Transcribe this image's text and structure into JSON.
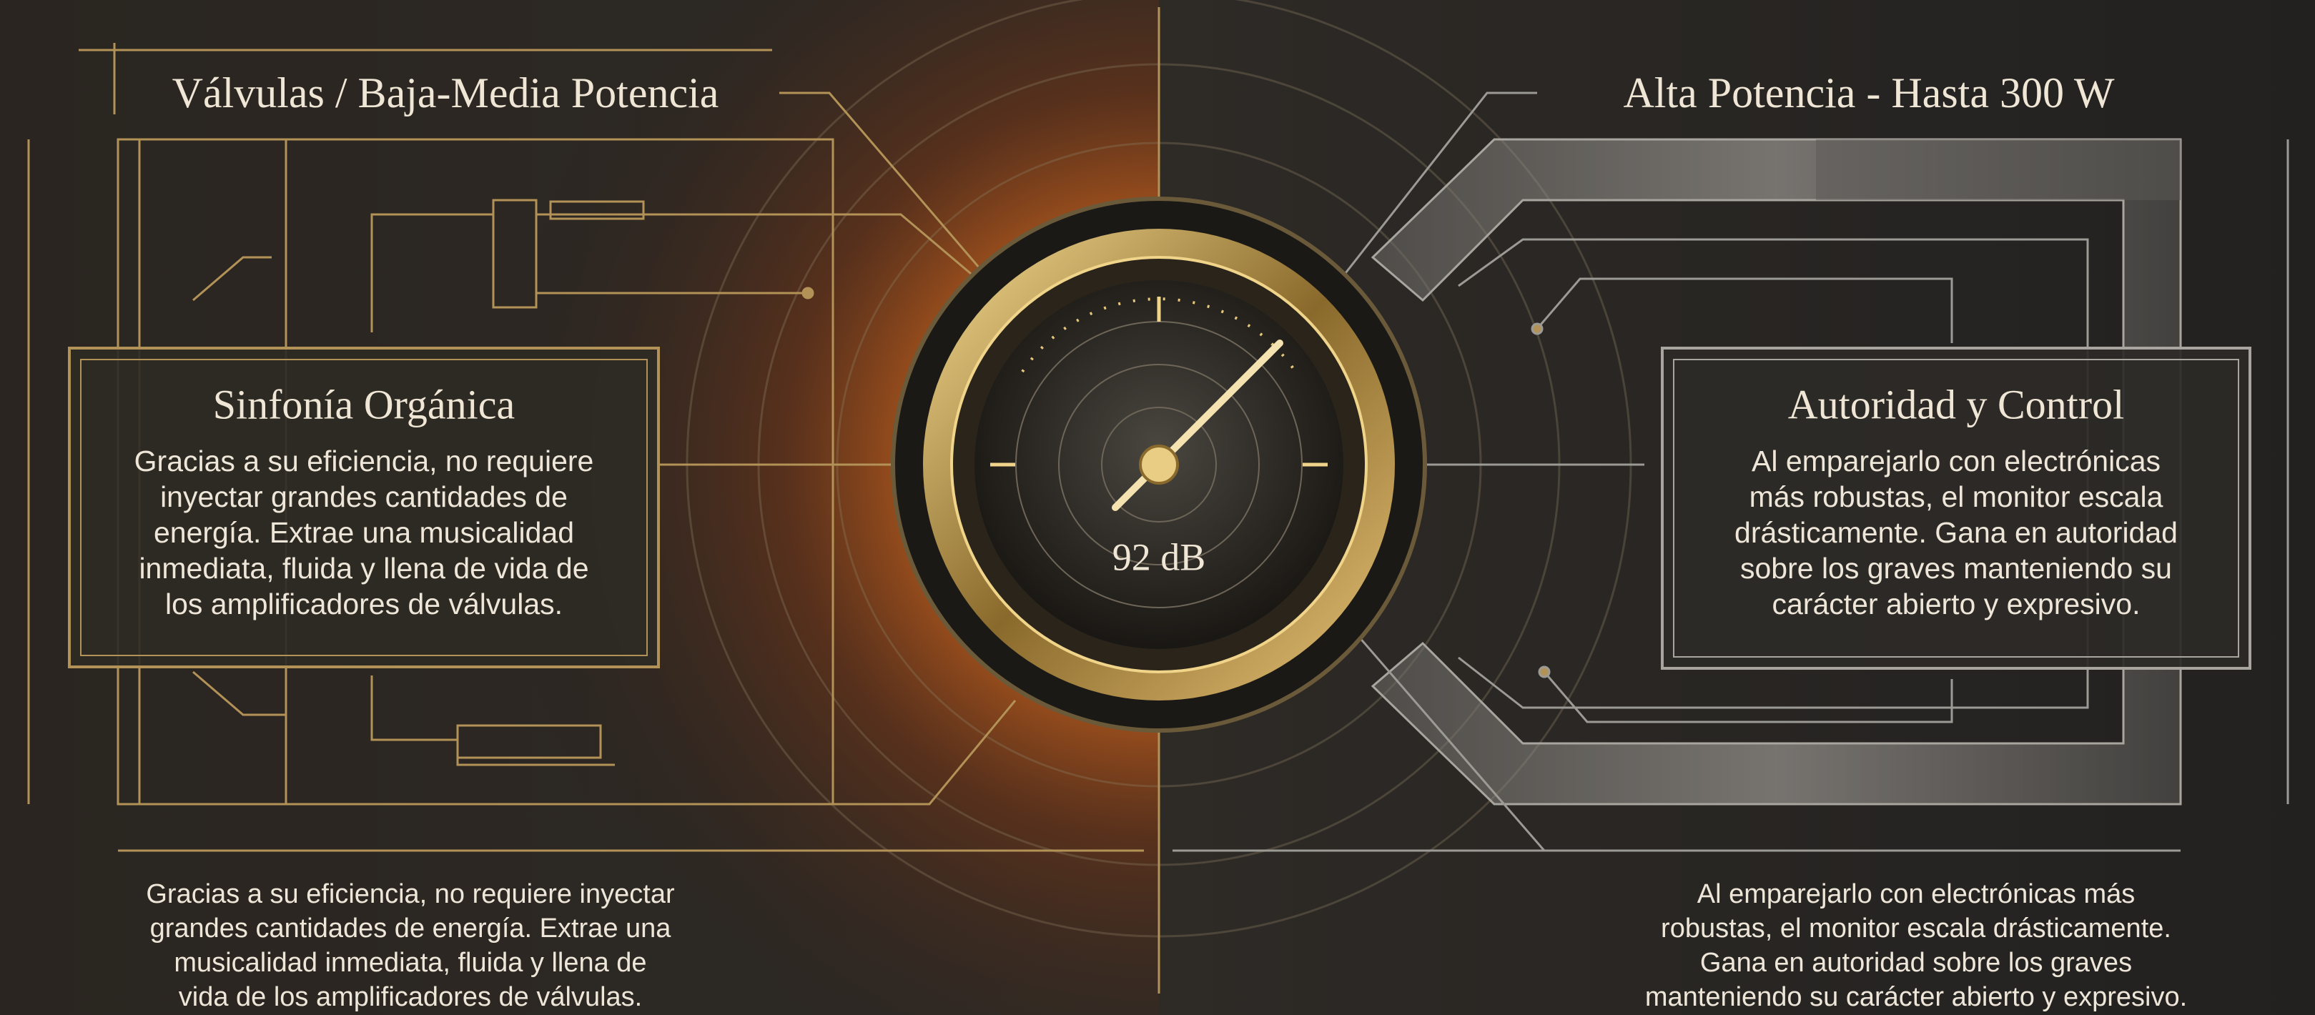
{
  "header": {
    "left_title": "Válvulas / Baja-Media Potencia",
    "right_title": "Alta Potencia - Hasta 300 W"
  },
  "gauge": {
    "label": "92 dB"
  },
  "left_box": {
    "title": "Sinfonía Orgánica",
    "lines": [
      "Gracias a su eficiencia, no requiere",
      "inyectar grandes cantidades de",
      "energía. Extrae una musicalidad",
      "inmediata, fluida y llena de vida de",
      "los amplificadores de válvulas."
    ]
  },
  "right_box": {
    "title": "Autoridad y Control",
    "lines": [
      "Al emparejarlo con electrónicas",
      "más robustas, el monitor escala",
      "drásticamente. Gana en autoridad",
      "sobre los graves manteniendo su",
      "carácter abierto y expresivo."
    ]
  },
  "left_caption": {
    "lines": [
      "Gracias a su eficiencia, no requiere inyectar",
      "grandes cantidades de energía. Extrae una",
      "musicalidad inmediata, fluida y llena de",
      "vida de los amplificadores de válvulas."
    ]
  },
  "right_caption": {
    "lines": [
      "Al emparejarlo con electrónicas más",
      "robustas, el monitor escala drásticamente.",
      "Gana en autoridad sobre los graves",
      "manteniendo su carácter abierto y expresivo."
    ]
  }
}
